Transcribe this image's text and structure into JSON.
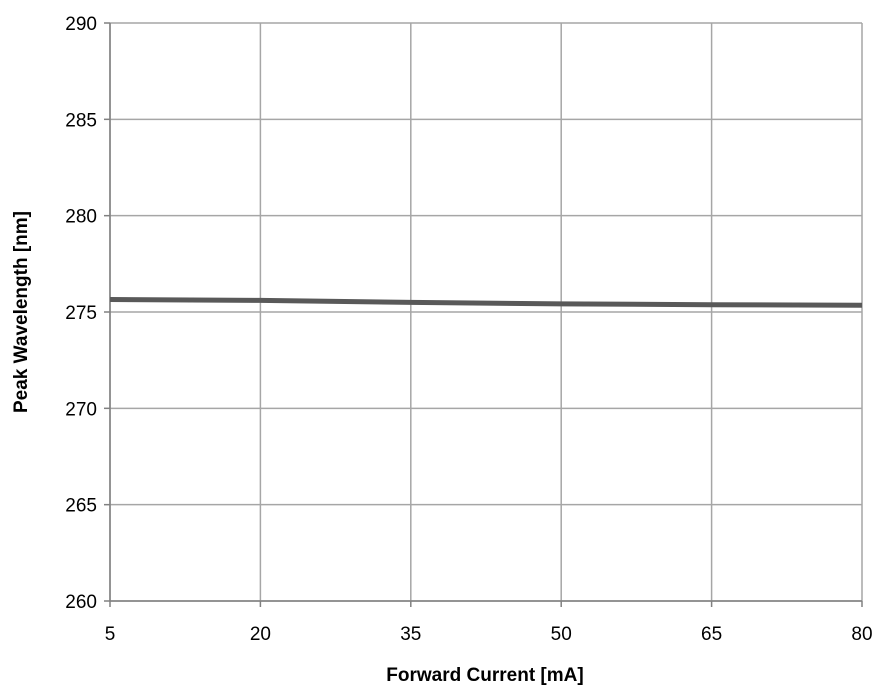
{
  "chart_data": {
    "type": "line",
    "title": "",
    "xlabel": "Forward Current [mA]",
    "ylabel": "Peak Wavelength [nm]",
    "xlim": [
      5,
      80
    ],
    "ylim": [
      260,
      290
    ],
    "x_ticks": [
      5,
      20,
      35,
      50,
      65,
      80
    ],
    "y_ticks": [
      260,
      265,
      270,
      275,
      280,
      285,
      290
    ],
    "grid": true,
    "legend": "none",
    "series": [
      {
        "color": "#595959",
        "x": [
          5,
          20,
          35,
          50,
          65,
          80
        ],
        "y": [
          275.65,
          275.6,
          275.5,
          275.42,
          275.38,
          275.35
        ]
      }
    ]
  },
  "colors": {
    "grid": "#a6a6a6",
    "axis": "#808080",
    "line": "#595959"
  }
}
